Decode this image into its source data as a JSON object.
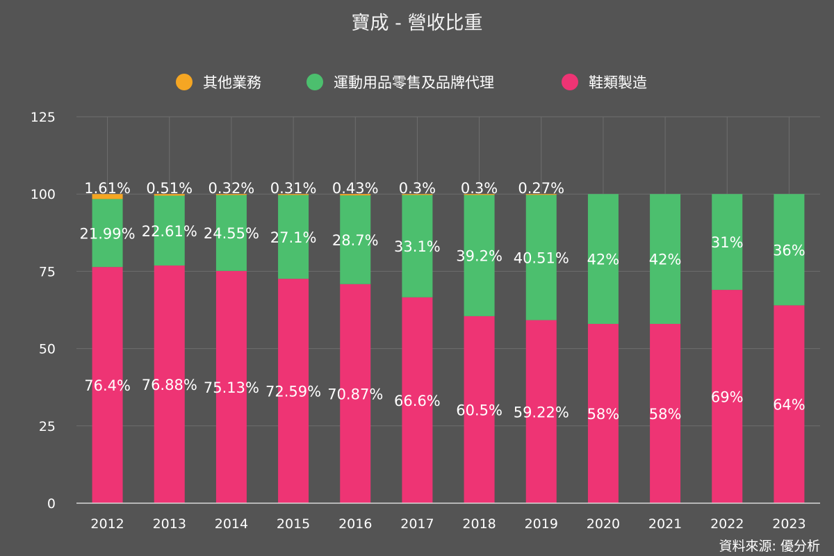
{
  "chart_data": {
    "type": "bar",
    "stacked": true,
    "title": "寶成 - 營收比重",
    "source": "資料來源: 優分析",
    "categories": [
      "2012",
      "2013",
      "2014",
      "2015",
      "2016",
      "2017",
      "2018",
      "2019",
      "2020",
      "2021",
      "2022",
      "2023"
    ],
    "series": [
      {
        "name": "鞋類製造",
        "color": "#ee3474",
        "values": [
          76.4,
          76.88,
          75.13,
          72.59,
          70.87,
          66.6,
          60.5,
          59.22,
          58,
          58,
          69,
          64
        ],
        "labels": [
          "76.4%",
          "76.88%",
          "75.13%",
          "72.59%",
          "70.87%",
          "66.6%",
          "60.5%",
          "59.22%",
          "58%",
          "58%",
          "69%",
          "64%"
        ]
      },
      {
        "name": "運動用品零售及品牌代理",
        "color": "#4cbf6e",
        "values": [
          21.99,
          22.61,
          24.55,
          27.1,
          28.7,
          33.1,
          39.2,
          40.51,
          42,
          42,
          31,
          36
        ],
        "labels": [
          "21.99%",
          "22.61%",
          "24.55%",
          "27.1%",
          "28.7%",
          "33.1%",
          "39.2%",
          "40.51%",
          "42%",
          "42%",
          "31%",
          "36%"
        ]
      },
      {
        "name": "其他業務",
        "color": "#f5a623",
        "values": [
          1.61,
          0.51,
          0.32,
          0.31,
          0.43,
          0.3,
          0.3,
          0.27,
          null,
          null,
          null,
          null
        ],
        "labels": [
          "1.61%",
          "0.51%",
          "0.32%",
          "0.31%",
          "0.43%",
          "0.3%",
          "0.3%",
          "0.27%",
          "",
          "",
          "",
          ""
        ]
      }
    ],
    "legend_order": [
      "其他業務",
      "運動用品零售及品牌代理",
      "鞋類製造"
    ],
    "yticks": [
      "0",
      "25",
      "50",
      "75",
      "100",
      "125"
    ],
    "ylim": [
      0,
      125
    ],
    "grid": true,
    "legend_position": "top"
  }
}
